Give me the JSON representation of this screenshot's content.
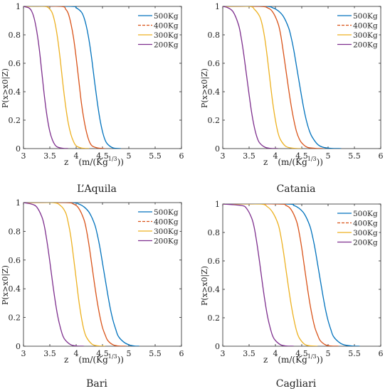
{
  "chart_data": [
    {
      "type": "line",
      "panel_label": "L’Aquila",
      "ylabel": "P(x>x0|Z)",
      "xlabel_main": "z",
      "xlabel_unit": "(m/(Kg",
      "xlabel_sup": "1/3",
      "xlabel_close": "))",
      "xlim": [
        3,
        6
      ],
      "ylim": [
        0,
        1
      ],
      "xticks": [
        "3",
        "3.5",
        "4",
        "4.5",
        "5",
        "5.5",
        "6"
      ],
      "yticks": [
        "0",
        "0.2",
        "0.4",
        "0.6",
        "0.8",
        "1"
      ],
      "grid": false,
      "legend_position": "top-right",
      "series": [
        {
          "name": "500Kg",
          "color": "#0072BD",
          "dash": "solid",
          "x": [
            3.0,
            3.9,
            4.0,
            4.1,
            4.15,
            4.2,
            4.25,
            4.3,
            4.35,
            4.4,
            4.45,
            4.5,
            4.55,
            4.6,
            4.7,
            4.85
          ],
          "y": [
            1.0,
            1.0,
            0.99,
            0.96,
            0.92,
            0.85,
            0.75,
            0.62,
            0.47,
            0.33,
            0.21,
            0.12,
            0.06,
            0.03,
            0.005,
            0.0
          ]
        },
        {
          "name": "400Kg",
          "color": "#D95319",
          "dash": "dashed",
          "x": [
            3.0,
            3.7,
            3.8,
            3.85,
            3.9,
            3.95,
            4.0,
            4.05,
            4.1,
            4.15,
            4.2,
            4.25,
            4.3,
            4.4,
            4.55
          ],
          "y": [
            1.0,
            1.0,
            0.98,
            0.95,
            0.88,
            0.78,
            0.64,
            0.48,
            0.32,
            0.2,
            0.11,
            0.05,
            0.02,
            0.005,
            0.0
          ]
        },
        {
          "name": "300Kg",
          "color": "#EDB120",
          "dash": "solid",
          "x": [
            3.0,
            3.4,
            3.5,
            3.55,
            3.6,
            3.65,
            3.7,
            3.75,
            3.8,
            3.85,
            3.9,
            3.95,
            4.0,
            4.1,
            4.25
          ],
          "y": [
            1.0,
            1.0,
            0.98,
            0.95,
            0.88,
            0.77,
            0.62,
            0.45,
            0.3,
            0.18,
            0.1,
            0.05,
            0.02,
            0.004,
            0.0
          ]
        },
        {
          "name": "200Kg",
          "color": "#7E2F8E",
          "dash": "solid",
          "x": [
            3.0,
            3.1,
            3.15,
            3.2,
            3.25,
            3.3,
            3.35,
            3.4,
            3.45,
            3.5,
            3.55,
            3.6,
            3.65,
            3.75,
            3.85
          ],
          "y": [
            1.0,
            0.99,
            0.97,
            0.92,
            0.83,
            0.7,
            0.53,
            0.36,
            0.22,
            0.12,
            0.06,
            0.025,
            0.01,
            0.002,
            0.0
          ]
        }
      ]
    },
    {
      "type": "line",
      "panel_label": "Catania",
      "ylabel": "P(x>x0|Z)",
      "xlabel_main": "z",
      "xlabel_unit": "(m/(Kg",
      "xlabel_sup": "1/3",
      "xlabel_close": "))",
      "xlim": [
        3,
        6
      ],
      "ylim": [
        0,
        1
      ],
      "xticks": [
        "3",
        "3.5",
        "4",
        "4.5",
        "5",
        "5.5",
        "6"
      ],
      "yticks": [
        "0",
        "0.2",
        "0.4",
        "0.6",
        "0.8",
        "1"
      ],
      "grid": false,
      "legend_position": "top-right",
      "series": [
        {
          "name": "500Kg",
          "color": "#0072BD",
          "dash": "solid",
          "x": [
            3.0,
            3.8,
            3.95,
            4.05,
            4.15,
            4.25,
            4.3,
            4.35,
            4.4,
            4.45,
            4.5,
            4.55,
            4.6,
            4.65,
            4.7,
            4.8,
            4.9,
            5.05,
            5.25
          ],
          "y": [
            1.0,
            1.0,
            0.99,
            0.97,
            0.93,
            0.85,
            0.78,
            0.69,
            0.58,
            0.47,
            0.36,
            0.26,
            0.18,
            0.12,
            0.08,
            0.03,
            0.01,
            0.002,
            0.0
          ]
        },
        {
          "name": "400Kg",
          "color": "#D95319",
          "dash": "dashed",
          "x": [
            3.0,
            3.7,
            3.85,
            3.95,
            4.05,
            4.1,
            4.15,
            4.2,
            4.25,
            4.3,
            4.35,
            4.4,
            4.45,
            4.5,
            4.6,
            4.75,
            4.9
          ],
          "y": [
            1.0,
            1.0,
            0.99,
            0.96,
            0.88,
            0.8,
            0.68,
            0.55,
            0.42,
            0.3,
            0.2,
            0.12,
            0.07,
            0.04,
            0.01,
            0.002,
            0.0
          ]
        },
        {
          "name": "300Kg",
          "color": "#EDB120",
          "dash": "solid",
          "x": [
            3.0,
            3.5,
            3.6,
            3.7,
            3.75,
            3.8,
            3.85,
            3.9,
            3.95,
            4.0,
            4.05,
            4.1,
            4.2,
            4.35,
            4.5
          ],
          "y": [
            1.0,
            1.0,
            0.98,
            0.93,
            0.87,
            0.77,
            0.63,
            0.47,
            0.32,
            0.2,
            0.11,
            0.06,
            0.015,
            0.002,
            0.0
          ]
        },
        {
          "name": "200Kg",
          "color": "#7E2F8E",
          "dash": "solid",
          "x": [
            3.0,
            3.1,
            3.2,
            3.3,
            3.35,
            3.4,
            3.45,
            3.5,
            3.55,
            3.6,
            3.65,
            3.7,
            3.8,
            3.9,
            4.05
          ],
          "y": [
            1.0,
            0.99,
            0.96,
            0.87,
            0.78,
            0.66,
            0.52,
            0.38,
            0.25,
            0.15,
            0.08,
            0.04,
            0.01,
            0.002,
            0.0
          ]
        }
      ]
    },
    {
      "type": "line",
      "panel_label": "Bari",
      "ylabel": "P(x>x0|Z)",
      "xlabel_main": "z",
      "xlabel_unit": "(m/(Kg",
      "xlabel_sup": "1/3",
      "xlabel_close": "))",
      "xlim": [
        3,
        6
      ],
      "ylim": [
        0,
        1
      ],
      "xticks": [
        "3",
        "3.5",
        "4",
        "4.5",
        "5",
        "5.5",
        "6"
      ],
      "yticks": [
        "0",
        "0.2",
        "0.4",
        "0.6",
        "0.8",
        "1"
      ],
      "grid": false,
      "legend_position": "top-right",
      "series": [
        {
          "name": "500Kg",
          "color": "#0072BD",
          "dash": "solid",
          "x": [
            3.0,
            3.9,
            4.05,
            4.15,
            4.25,
            4.35,
            4.4,
            4.45,
            4.5,
            4.55,
            4.6,
            4.65,
            4.7,
            4.75,
            4.8,
            4.9,
            5.0,
            5.1,
            5.2
          ],
          "y": [
            1.0,
            1.0,
            0.99,
            0.97,
            0.93,
            0.85,
            0.78,
            0.69,
            0.58,
            0.47,
            0.36,
            0.26,
            0.18,
            0.12,
            0.07,
            0.03,
            0.01,
            0.002,
            0.0
          ]
        },
        {
          "name": "400Kg",
          "color": "#D95319",
          "dash": "dashed",
          "x": [
            3.0,
            3.8,
            3.95,
            4.05,
            4.15,
            4.2,
            4.25,
            4.3,
            4.35,
            4.4,
            4.45,
            4.5,
            4.55,
            4.6,
            4.7,
            4.8,
            4.95
          ],
          "y": [
            1.0,
            1.0,
            0.99,
            0.96,
            0.88,
            0.8,
            0.69,
            0.56,
            0.43,
            0.31,
            0.21,
            0.13,
            0.08,
            0.04,
            0.01,
            0.002,
            0.0
          ]
        },
        {
          "name": "300Kg",
          "color": "#EDB120",
          "dash": "solid",
          "x": [
            3.0,
            3.55,
            3.7,
            3.8,
            3.85,
            3.9,
            3.95,
            4.0,
            4.05,
            4.1,
            4.15,
            4.2,
            4.3,
            4.4,
            4.55
          ],
          "y": [
            1.0,
            1.0,
            0.98,
            0.93,
            0.86,
            0.76,
            0.62,
            0.47,
            0.32,
            0.2,
            0.11,
            0.06,
            0.015,
            0.003,
            0.0
          ]
        },
        {
          "name": "200Kg",
          "color": "#7E2F8E",
          "dash": "solid",
          "x": [
            3.0,
            3.15,
            3.25,
            3.35,
            3.4,
            3.45,
            3.5,
            3.55,
            3.6,
            3.65,
            3.7,
            3.75,
            3.8,
            3.9,
            4.0,
            4.15
          ],
          "y": [
            1.0,
            0.99,
            0.97,
            0.9,
            0.83,
            0.72,
            0.59,
            0.45,
            0.32,
            0.21,
            0.13,
            0.07,
            0.04,
            0.01,
            0.002,
            0.0
          ]
        }
      ]
    },
    {
      "type": "line",
      "panel_label": "Cagliari",
      "ylabel": "P(x>x0|Z)",
      "xlabel_main": "z",
      "xlabel_unit": "(m/(Kg",
      "xlabel_sup": "1/3",
      "xlabel_close": "))",
      "xlim": [
        3,
        6
      ],
      "ylim": [
        0,
        1
      ],
      "xticks": [
        "3",
        "3.5",
        "4",
        "4.5",
        "5",
        "5.5",
        "6"
      ],
      "yticks": [
        "0",
        "0.2",
        "0.4",
        "0.6",
        "0.8",
        "1"
      ],
      "grid": false,
      "legend_position": "top-right",
      "series": [
        {
          "name": "500Kg",
          "color": "#0072BD",
          "dash": "solid",
          "x": [
            3.0,
            4.2,
            4.35,
            4.45,
            4.55,
            4.65,
            4.7,
            4.75,
            4.8,
            4.85,
            4.9,
            4.95,
            5.0,
            5.05,
            5.1,
            5.2,
            5.3,
            5.45,
            5.6
          ],
          "y": [
            1.0,
            1.0,
            0.99,
            0.97,
            0.93,
            0.85,
            0.78,
            0.69,
            0.58,
            0.47,
            0.36,
            0.26,
            0.18,
            0.12,
            0.07,
            0.03,
            0.01,
            0.002,
            0.0
          ]
        },
        {
          "name": "400Kg",
          "color": "#D95319",
          "dash": "dashed",
          "x": [
            3.0,
            4.05,
            4.2,
            4.3,
            4.4,
            4.45,
            4.5,
            4.55,
            4.6,
            4.65,
            4.7,
            4.75,
            4.8,
            4.85,
            4.95,
            5.05,
            5.2
          ],
          "y": [
            1.0,
            1.0,
            0.99,
            0.96,
            0.88,
            0.8,
            0.69,
            0.56,
            0.43,
            0.31,
            0.21,
            0.13,
            0.08,
            0.04,
            0.01,
            0.002,
            0.0
          ]
        },
        {
          "name": "300Kg",
          "color": "#EDB120",
          "dash": "solid",
          "x": [
            3.0,
            3.7,
            3.85,
            3.95,
            4.05,
            4.1,
            4.15,
            4.2,
            4.25,
            4.3,
            4.35,
            4.4,
            4.45,
            4.55,
            4.65,
            4.8
          ],
          "y": [
            1.0,
            1.0,
            0.98,
            0.94,
            0.86,
            0.78,
            0.67,
            0.54,
            0.41,
            0.29,
            0.19,
            0.11,
            0.06,
            0.015,
            0.003,
            0.0
          ]
        },
        {
          "name": "200Kg",
          "color": "#7E2F8E",
          "dash": "solid",
          "x": [
            3.0,
            3.35,
            3.45,
            3.55,
            3.6,
            3.65,
            3.7,
            3.75,
            3.8,
            3.85,
            3.9,
            3.95,
            4.0,
            4.1,
            4.2,
            4.35
          ],
          "y": [
            1.0,
            0.99,
            0.97,
            0.9,
            0.83,
            0.72,
            0.59,
            0.45,
            0.32,
            0.21,
            0.13,
            0.07,
            0.04,
            0.01,
            0.002,
            0.0
          ]
        }
      ]
    }
  ]
}
